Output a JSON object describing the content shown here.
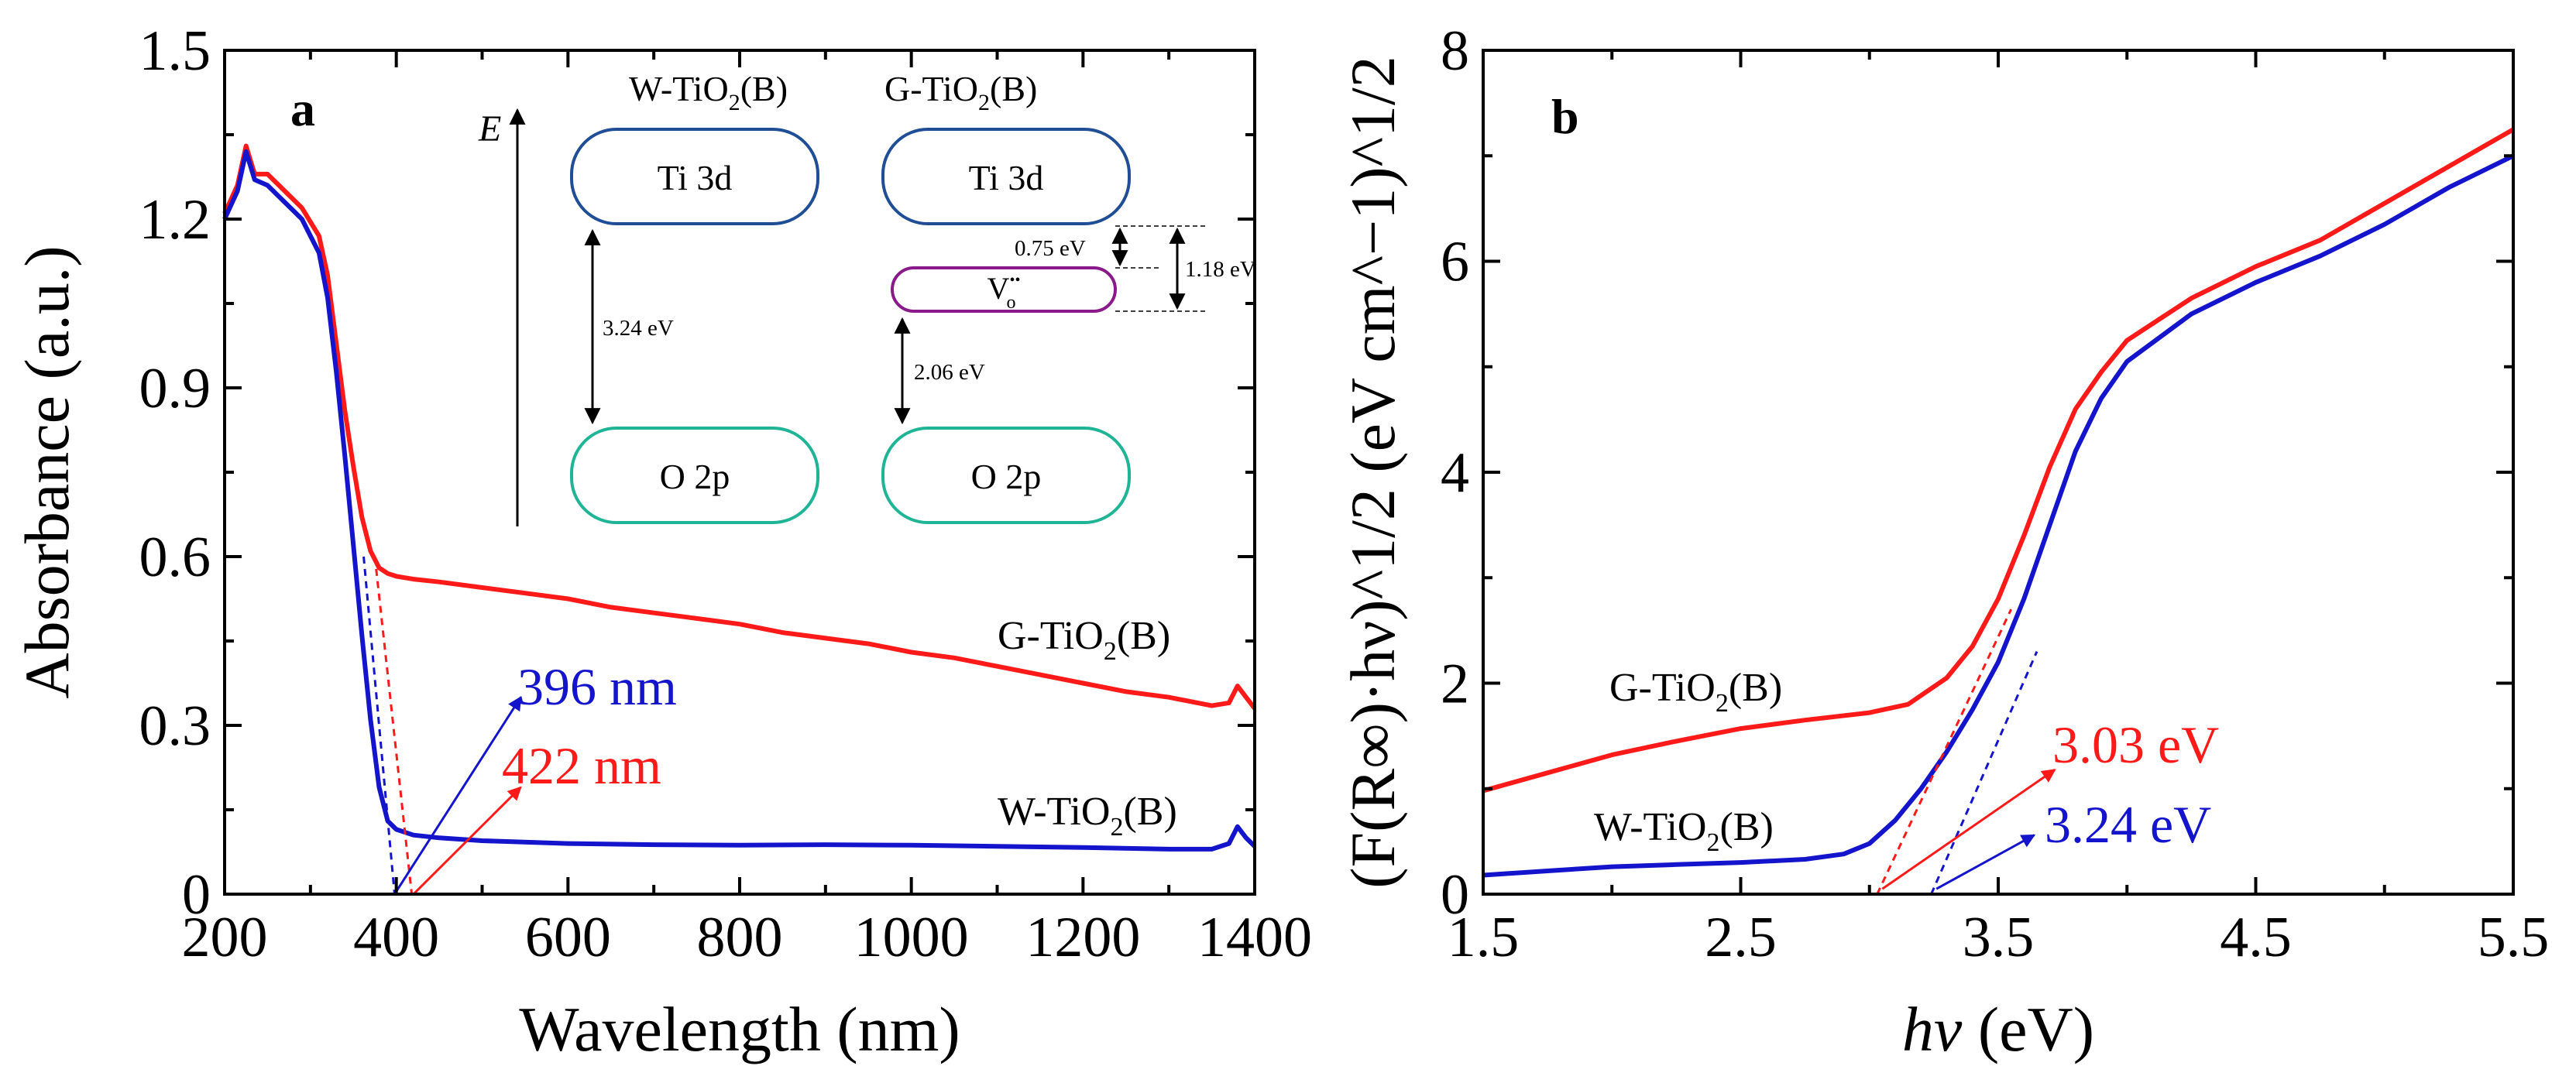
{
  "colors": {
    "g": "#ff1a1a",
    "w": "#1414cc",
    "ti": "#1f4e96",
    "o": "#1fb496",
    "vo": "#8a1a8a"
  },
  "chart_data": [
    {
      "panel": "a",
      "type": "line",
      "xlabel": "Wavelength (nm)",
      "ylabel": "Absorbance (a.u.)",
      "xlim": [
        200,
        1400
      ],
      "ylim": [
        0,
        1.5
      ],
      "xticks": [
        "200",
        "400",
        "600",
        "800",
        "1000",
        "1200",
        "1400"
      ],
      "yticks": [
        "0",
        "0.3",
        "0.6",
        "0.9",
        "1.2",
        "1.5"
      ],
      "series": [
        {
          "name": "G-TiO2(B)",
          "label_main": "G-TiO",
          "label_sub": "2",
          "label_tail": "(B)",
          "x": [
            200,
            215,
            225,
            235,
            250,
            270,
            290,
            310,
            320,
            330,
            340,
            350,
            360,
            370,
            380,
            390,
            400,
            420,
            450,
            500,
            550,
            600,
            650,
            700,
            750,
            800,
            850,
            900,
            950,
            1000,
            1050,
            1100,
            1150,
            1200,
            1250,
            1300,
            1350,
            1370,
            1380,
            1390,
            1400
          ],
          "values": [
            1.21,
            1.26,
            1.33,
            1.28,
            1.28,
            1.25,
            1.22,
            1.17,
            1.1,
            0.98,
            0.86,
            0.76,
            0.67,
            0.61,
            0.58,
            0.57,
            0.565,
            0.56,
            0.555,
            0.545,
            0.535,
            0.525,
            0.51,
            0.5,
            0.49,
            0.48,
            0.465,
            0.455,
            0.445,
            0.43,
            0.42,
            0.405,
            0.39,
            0.375,
            0.36,
            0.35,
            0.335,
            0.34,
            0.37,
            0.35,
            0.33
          ]
        },
        {
          "name": "W-TiO2(B)",
          "label_main": "W-TiO",
          "label_sub": "2",
          "label_tail": "(B)",
          "x": [
            200,
            215,
            225,
            235,
            250,
            270,
            290,
            310,
            320,
            330,
            340,
            350,
            360,
            370,
            380,
            390,
            400,
            420,
            450,
            500,
            600,
            700,
            800,
            900,
            1000,
            1100,
            1200,
            1300,
            1350,
            1370,
            1380,
            1390,
            1400
          ],
          "values": [
            1.2,
            1.25,
            1.32,
            1.27,
            1.26,
            1.23,
            1.2,
            1.14,
            1.06,
            0.93,
            0.78,
            0.62,
            0.46,
            0.31,
            0.19,
            0.13,
            0.115,
            0.105,
            0.1,
            0.095,
            0.09,
            0.088,
            0.087,
            0.088,
            0.087,
            0.085,
            0.083,
            0.08,
            0.08,
            0.09,
            0.12,
            0.1,
            0.085
          ]
        }
      ],
      "fits": [
        {
          "series": "W-TiO2(B)",
          "points": [
            [
              362,
              0.6
            ],
            [
              398,
              0
            ]
          ]
        },
        {
          "series": "G-TiO2(B)",
          "points": [
            [
              375,
              0.6
            ],
            [
              418,
              0
            ]
          ]
        }
      ],
      "annotations": [
        {
          "text": "396 nm",
          "color": "w",
          "from": [
            398,
            0
          ],
          "to": [
            545,
            0.35
          ]
        },
        {
          "text": "422 nm",
          "color": "g",
          "from": [
            420,
            0
          ],
          "to": [
            545,
            0.19
          ]
        }
      ],
      "inset": {
        "energy_axis_label": "E",
        "columns": [
          {
            "title_main": "W-TiO",
            "title_sub": "2",
            "title_tail": "(B)",
            "cb": "Ti 3d",
            "vb": "O 2p",
            "gap": "3.24 eV"
          },
          {
            "title_main": "G-TiO",
            "title_sub": "2",
            "title_tail": "(B)",
            "cb": "Ti 3d",
            "vb": "O 2p",
            "defect_main": "V",
            "defect_sup": "••",
            "defect_sub": "o",
            "gap_lower": "2.06 eV",
            "gap_upper": "0.75 eV",
            "gap_total": "1.18 eV"
          }
        ]
      }
    },
    {
      "panel": "b",
      "type": "line",
      "xlabel_italic": "hν",
      "xlabel_tail": " (eV)",
      "ylabel_display": "(F(R∞)·hν)^1/2 (eV cm^−1)^1/2",
      "xlim": [
        1.5,
        5.5
      ],
      "ylim": [
        0,
        8
      ],
      "xticks": [
        "1.5",
        "2.5",
        "3.5",
        "4.5",
        "5.5"
      ],
      "yticks": [
        "0",
        "2",
        "4",
        "6",
        "8"
      ],
      "series": [
        {
          "name": "G-TiO2(B)",
          "label_main": "G-TiO",
          "label_sub": "2",
          "label_tail": "(B)",
          "x": [
            1.5,
            1.75,
            2.0,
            2.25,
            2.5,
            2.75,
            3.0,
            3.15,
            3.3,
            3.4,
            3.5,
            3.6,
            3.7,
            3.8,
            3.9,
            4.0,
            4.25,
            4.5,
            4.75,
            5.0,
            5.25,
            5.5
          ],
          "values": [
            0.98,
            1.15,
            1.32,
            1.45,
            1.57,
            1.65,
            1.72,
            1.8,
            2.05,
            2.35,
            2.8,
            3.4,
            4.05,
            4.6,
            4.95,
            5.25,
            5.65,
            5.95,
            6.2,
            6.55,
            6.9,
            7.25
          ]
        },
        {
          "name": "W-TiO2(B)",
          "label_main": "W-TiO",
          "label_sub": "2",
          "label_tail": "(B)",
          "x": [
            1.5,
            1.75,
            2.0,
            2.25,
            2.5,
            2.75,
            2.9,
            3.0,
            3.1,
            3.2,
            3.3,
            3.4,
            3.5,
            3.6,
            3.7,
            3.8,
            3.9,
            4.0,
            4.25,
            4.5,
            4.75,
            5.0,
            5.25,
            5.5
          ],
          "values": [
            0.18,
            0.22,
            0.26,
            0.28,
            0.3,
            0.33,
            0.38,
            0.48,
            0.7,
            1.0,
            1.35,
            1.75,
            2.2,
            2.8,
            3.5,
            4.2,
            4.7,
            5.05,
            5.5,
            5.8,
            6.05,
            6.35,
            6.7,
            7.0
          ]
        }
      ],
      "fits": [
        {
          "series": "G-TiO2(B)",
          "points": [
            [
              3.03,
              0
            ],
            [
              3.55,
              2.7
            ]
          ]
        },
        {
          "series": "W-TiO2(B)",
          "points": [
            [
              3.24,
              0
            ],
            [
              3.65,
              2.3
            ]
          ]
        }
      ],
      "annotations": [
        {
          "text": "3.03 eV",
          "color": "g",
          "from": [
            3.05,
            0.05
          ],
          "to": [
            3.72,
            1.18
          ]
        },
        {
          "text": "3.24 eV",
          "color": "w",
          "from": [
            3.26,
            0.05
          ],
          "to": [
            3.64,
            0.56
          ]
        }
      ]
    }
  ]
}
